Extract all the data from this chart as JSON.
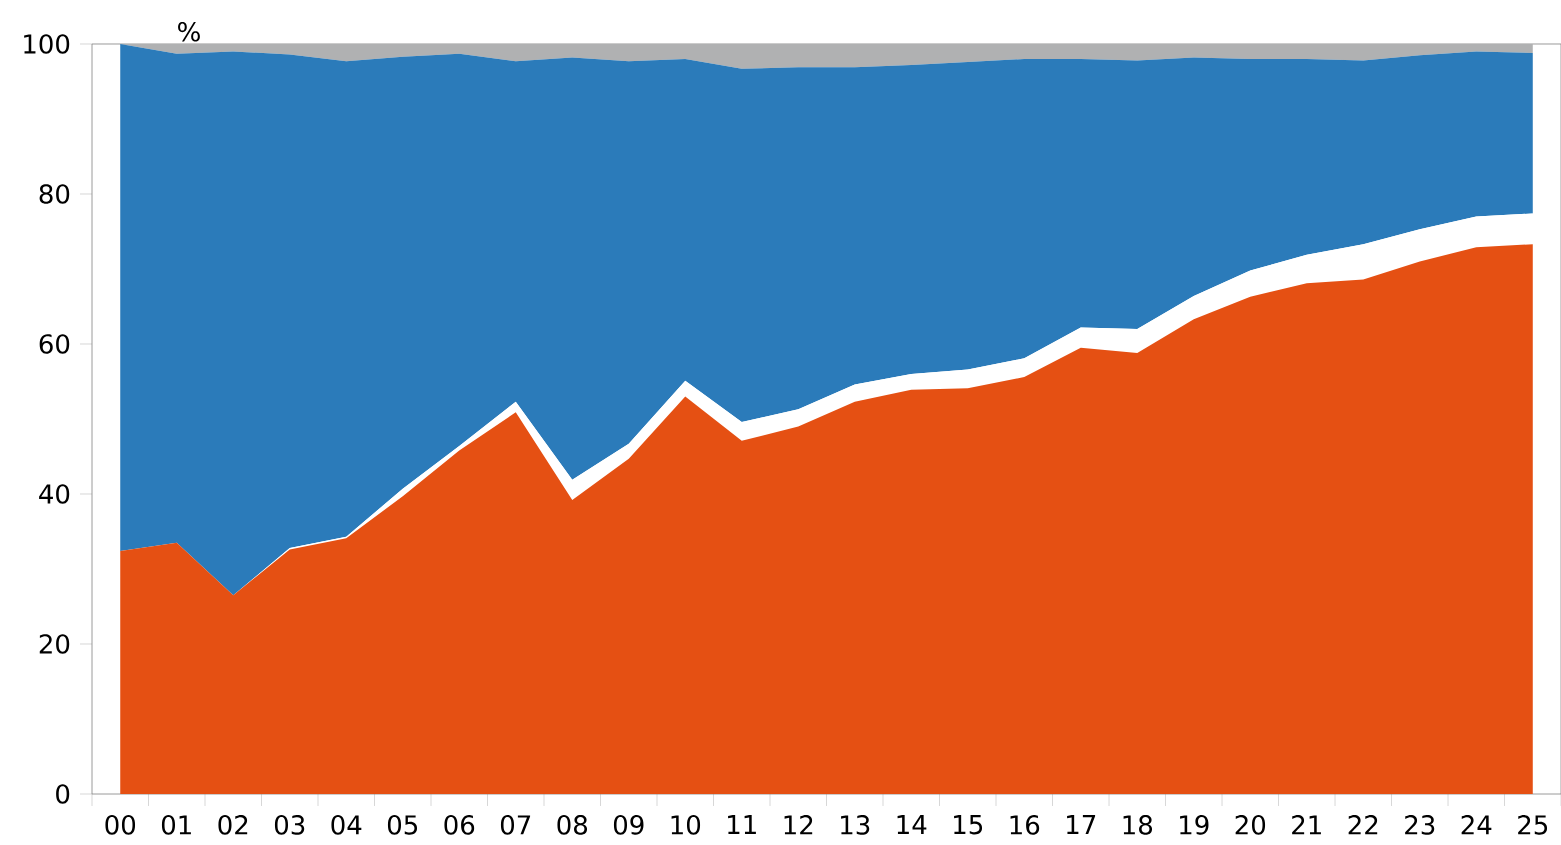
{
  "chart_data": {
    "type": "area",
    "stacked": true,
    "ylabel": "%",
    "categories": [
      "00",
      "01",
      "02",
      "03",
      "04",
      "05",
      "06",
      "07",
      "08",
      "09",
      "10",
      "11",
      "12",
      "13",
      "14",
      "15",
      "16",
      "17",
      "18",
      "19",
      "20",
      "21",
      "22",
      "23",
      "24",
      "25"
    ],
    "series": [
      {
        "color": "#e55013",
        "values": [
          32.4,
          33.5,
          26.5,
          32.6,
          34.1,
          39.7,
          45.8,
          50.9,
          39.2,
          44.7,
          53.0,
          47.1,
          49.0,
          52.3,
          53.9,
          54.1,
          55.6,
          59.5,
          58.8,
          63.3,
          66.3,
          68.1,
          68.6,
          71.0,
          72.9,
          73.3
        ]
      },
      {
        "color": "#ffffff",
        "values": [
          0,
          0,
          0,
          0.2,
          0.2,
          1.0,
          0.6,
          1.4,
          2.7,
          2.0,
          2.1,
          2.5,
          2.3,
          2.3,
          2.1,
          2.5,
          2.5,
          2.7,
          3.2,
          3.1,
          3.5,
          3.8,
          4.7,
          4.3,
          4.1,
          4.1
        ]
      },
      {
        "color": "#2b7bba",
        "values": [
          67.6,
          65.2,
          72.5,
          65.8,
          63.4,
          57.6,
          52.3,
          45.4,
          56.3,
          51.0,
          42.9,
          47.1,
          45.6,
          42.3,
          41.2,
          41.0,
          39.9,
          35.8,
          35.8,
          31.8,
          28.2,
          26.1,
          24.5,
          23.2,
          22.0,
          21.4
        ]
      },
      {
        "color": "#b0b1b2",
        "values": [
          0,
          1.3,
          1.0,
          1.4,
          2.3,
          1.7,
          1.3,
          2.3,
          1.8,
          2.3,
          2.0,
          3.3,
          3.1,
          3.1,
          2.8,
          2.4,
          2.0,
          2.0,
          2.2,
          1.8,
          2.0,
          2.0,
          2.2,
          1.5,
          1.0,
          1.2
        ]
      }
    ],
    "ylim": [
      0,
      100
    ],
    "yticks": [
      0,
      20,
      40,
      60,
      80,
      100
    ]
  }
}
